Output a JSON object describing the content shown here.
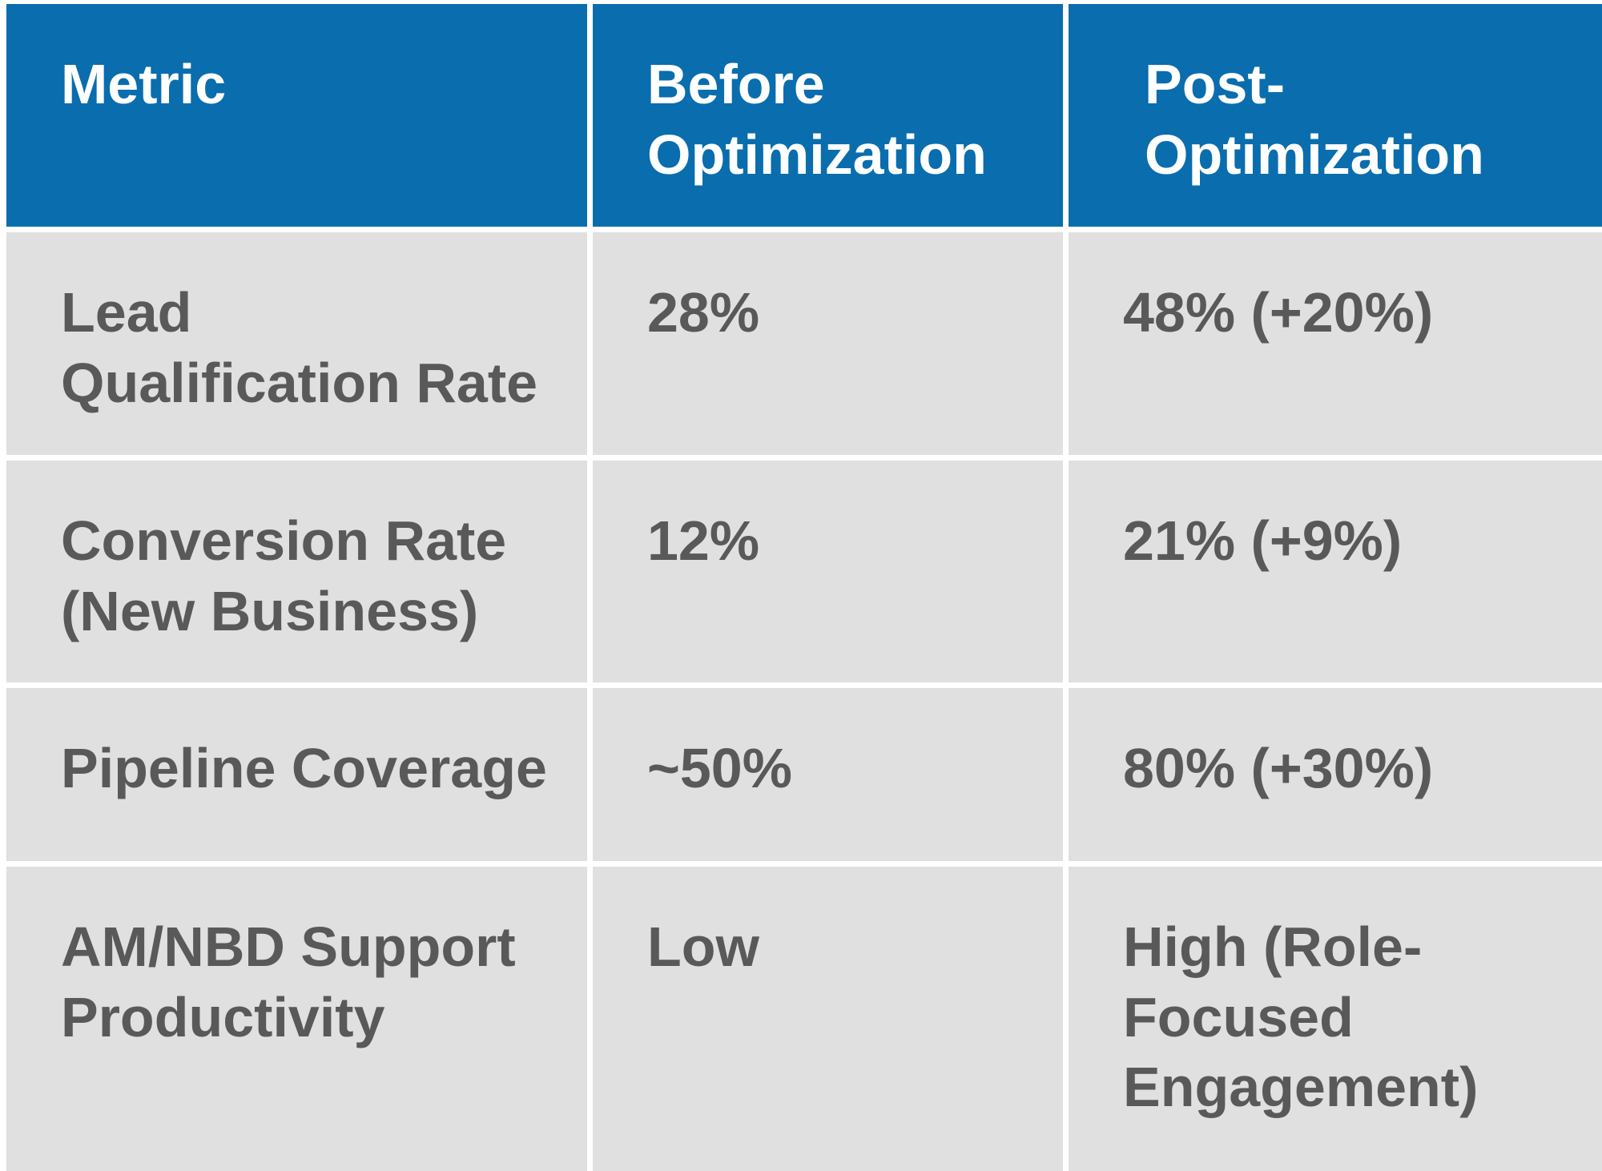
{
  "colors": {
    "header_background": "#0A6DAD",
    "header_text": "#FFFFFF",
    "row_background": "#E0E0E0",
    "body_text": "#595959",
    "gutter": "#FFFFFF"
  },
  "chart_data": {
    "type": "table",
    "title": "",
    "columns": [
      "Metric",
      "Before Optimization",
      "Post-Optimization"
    ],
    "rows": [
      [
        "Lead Qualification Rate",
        "28%",
        "48% (+20%)"
      ],
      [
        "Conversion Rate (New Business)",
        "12%",
        "21% (+9%)"
      ],
      [
        "Pipeline Coverage",
        "~50%",
        "80% (+30%)"
      ],
      [
        "AM/NBD Support Productivity",
        "Low",
        "High (Role-Focused Engagement)"
      ]
    ]
  },
  "table": {
    "header": [
      "Metric",
      "Before\nOptimization",
      "Post-\nOptimization"
    ],
    "rows": [
      [
        "Lead\nQualification Rate",
        "28%",
        "48% (+20%)"
      ],
      [
        "Conversion Rate\n(New Business)",
        "12%",
        "21% (+9%)"
      ],
      [
        "Pipeline Coverage",
        "~50%",
        "80% (+30%)"
      ],
      [
        "AM/NBD Support\nProductivity",
        "Low",
        "High (Role-\nFocused\nEngagement)"
      ]
    ]
  }
}
